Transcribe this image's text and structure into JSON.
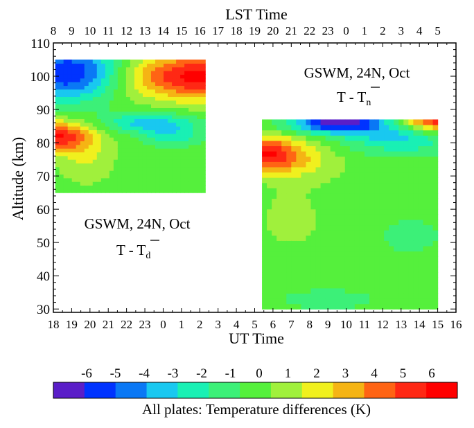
{
  "chart_data": {
    "type": "heatmap",
    "top_axis": {
      "title": "LST Time",
      "tick_labels": [
        "8",
        "9",
        "10",
        "11",
        "12",
        "13",
        "14",
        "15",
        "16",
        "17",
        "18",
        "19",
        "20",
        "21",
        "22",
        "23",
        "0",
        "1",
        "2",
        "3",
        "4",
        "5"
      ]
    },
    "bottom_axis": {
      "title": "UT Time",
      "tick_labels": [
        "18",
        "19",
        "20",
        "21",
        "22",
        "23",
        "0",
        "1",
        "2",
        "3",
        "4",
        "5",
        "6",
        "7",
        "8",
        "9",
        "10",
        "11",
        "12",
        "13",
        "14",
        "15",
        "16"
      ]
    },
    "y_axis": {
      "title": "Altitude (km)",
      "range": [
        29,
        110
      ],
      "ticks": [
        30,
        40,
        50,
        60,
        70,
        80,
        90,
        100,
        110
      ]
    },
    "colorbar": {
      "label": "All plates: Temperature differences (K)",
      "tick_labels": [
        "-6",
        "-5",
        "-4",
        "-3",
        "-2",
        "-1",
        "0",
        "1",
        "2",
        "3",
        "4",
        "5",
        "6"
      ],
      "colors": [
        "#5a1ec8",
        "#0033ff",
        "#0a78f5",
        "#19c8f0",
        "#19f0b4",
        "#3cf078",
        "#55f03c",
        "#a0f03c",
        "#f0f01e",
        "#f5b414",
        "#ff6414",
        "#ff2814",
        "#ff0000"
      ]
    },
    "plots": [
      {
        "name": "diurnal",
        "annotation": {
          "line1": "GSWM, 24N, Oct",
          "line2_main": "T - T",
          "line2_sub": "d"
        },
        "x_range": [
          18.1,
          26.3
        ],
        "y_range": [
          65,
          105
        ],
        "anomaly_centers": [
          {
            "x": 18.1,
            "y": 82,
            "value": 5.5,
            "sx": 2.0,
            "sy": 4.5
          },
          {
            "x": 19.8,
            "y": 75,
            "value": 1.5,
            "sx": 1.5,
            "sy": 7.0
          },
          {
            "x": 19.0,
            "y": 101,
            "value": -6.0,
            "sx": 3.0,
            "sy": 8.0
          },
          {
            "x": 26.3,
            "y": 100,
            "value": 6.0,
            "sx": 5.0,
            "sy": 7.0
          },
          {
            "x": 23.3,
            "y": 86,
            "value": -3.0,
            "sx": 2.5,
            "sy": 3.0
          },
          {
            "x": 24.5,
            "y": 82,
            "value": -2.0,
            "sx": 1.5,
            "sy": 3.0
          }
        ]
      },
      {
        "name": "nondiurnal",
        "annotation": {
          "line1": "GSWM, 24N, Oct",
          "line2_main": "T - T",
          "line2_sub": "n"
        },
        "x_range": [
          29.4,
          39.0
        ],
        "y_range": [
          30,
          87
        ],
        "anomaly_centers": [
          {
            "x": 29.6,
            "y": 77,
            "value": 5.0,
            "sx": 2.0,
            "sy": 5.0
          },
          {
            "x": 31.5,
            "y": 74,
            "value": 1.5,
            "sx": 2.5,
            "sy": 6.0
          },
          {
            "x": 33.5,
            "y": 86,
            "value": -6.0,
            "sx": 2.5,
            "sy": 3.0
          },
          {
            "x": 38.9,
            "y": 87,
            "value": 6.0,
            "sx": 2.0,
            "sy": 4.0
          },
          {
            "x": 37.0,
            "y": 82,
            "value": -3.0,
            "sx": 3.0,
            "sy": 5.0
          },
          {
            "x": 31.0,
            "y": 57,
            "value": 0.8,
            "sx": 2.0,
            "sy": 10.0
          },
          {
            "x": 37.5,
            "y": 52,
            "value": -1.2,
            "sx": 1.5,
            "sy": 5.0
          },
          {
            "x": 33.0,
            "y": 33,
            "value": -1.2,
            "sx": 2.5,
            "sy": 3.0
          }
        ]
      }
    ]
  }
}
